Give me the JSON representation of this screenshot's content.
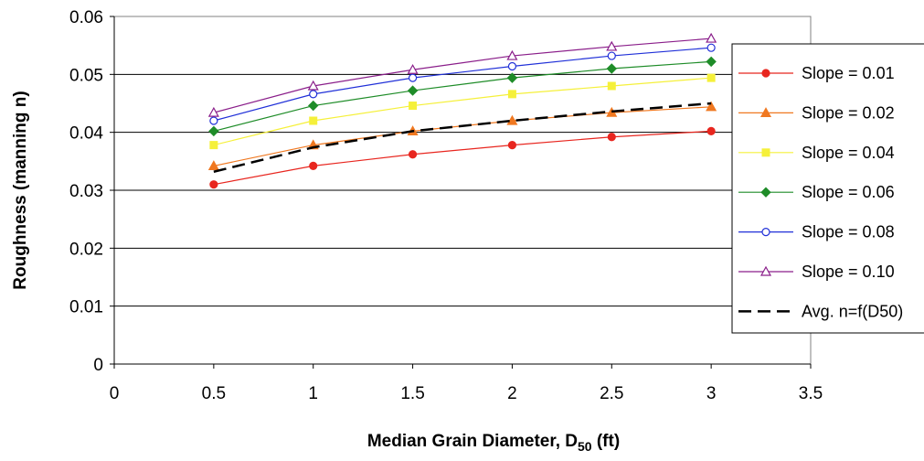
{
  "chart_data": {
    "type": "line",
    "title": "",
    "xlabel": "Median Grain Diameter, D",
    "xlabel_sub": "50",
    "xlabel_suffix": " (ft)",
    "ylabel": "Roughness (manning n)",
    "xlim": [
      0,
      3.5
    ],
    "ylim": [
      0,
      0.06
    ],
    "x_ticks": [
      "0",
      "0.5",
      "1",
      "1.5",
      "2",
      "2.5",
      "3",
      "3.5"
    ],
    "y_ticks": [
      "0",
      "0.01",
      "0.02",
      "0.03",
      "0.04",
      "0.05",
      "0.06"
    ],
    "grid": "horizontal",
    "legend_position": "right",
    "x": [
      0.5,
      1,
      1.5,
      2,
      2.5,
      3
    ],
    "series": [
      {
        "name": "Slope =  0.01",
        "color": "#e8261f",
        "marker": "filled-circle",
        "values": [
          0.031,
          0.0342,
          0.0362,
          0.0378,
          0.0392,
          0.0402
        ]
      },
      {
        "name": "Slope =  0.02",
        "color": "#f07820",
        "marker": "filled-triangle",
        "values": [
          0.0342,
          0.0378,
          0.0402,
          0.042,
          0.0434,
          0.0444
        ]
      },
      {
        "name": "Slope =  0.04",
        "color": "#f5f03a",
        "marker": "filled-square",
        "values": [
          0.0378,
          0.042,
          0.0446,
          0.0466,
          0.048,
          0.0494
        ]
      },
      {
        "name": "Slope =  0.06",
        "color": "#1e8c28",
        "marker": "filled-diamond",
        "values": [
          0.0402,
          0.0446,
          0.0472,
          0.0494,
          0.051,
          0.0522
        ]
      },
      {
        "name": "Slope =  0.08",
        "color": "#2030d8",
        "marker": "open-circle",
        "values": [
          0.042,
          0.0466,
          0.0494,
          0.0514,
          0.0532,
          0.0546
        ]
      },
      {
        "name": "Slope =  0.10",
        "color": "#8a1e8a",
        "marker": "open-triangle",
        "values": [
          0.0434,
          0.048,
          0.0508,
          0.0532,
          0.0548,
          0.0562
        ]
      },
      {
        "name": "Avg. n=f(D50)",
        "color": "#000000",
        "marker": "none",
        "dashed": true,
        "values": [
          0.0332,
          0.0374,
          0.0402,
          0.042,
          0.0436,
          0.045
        ]
      }
    ]
  }
}
